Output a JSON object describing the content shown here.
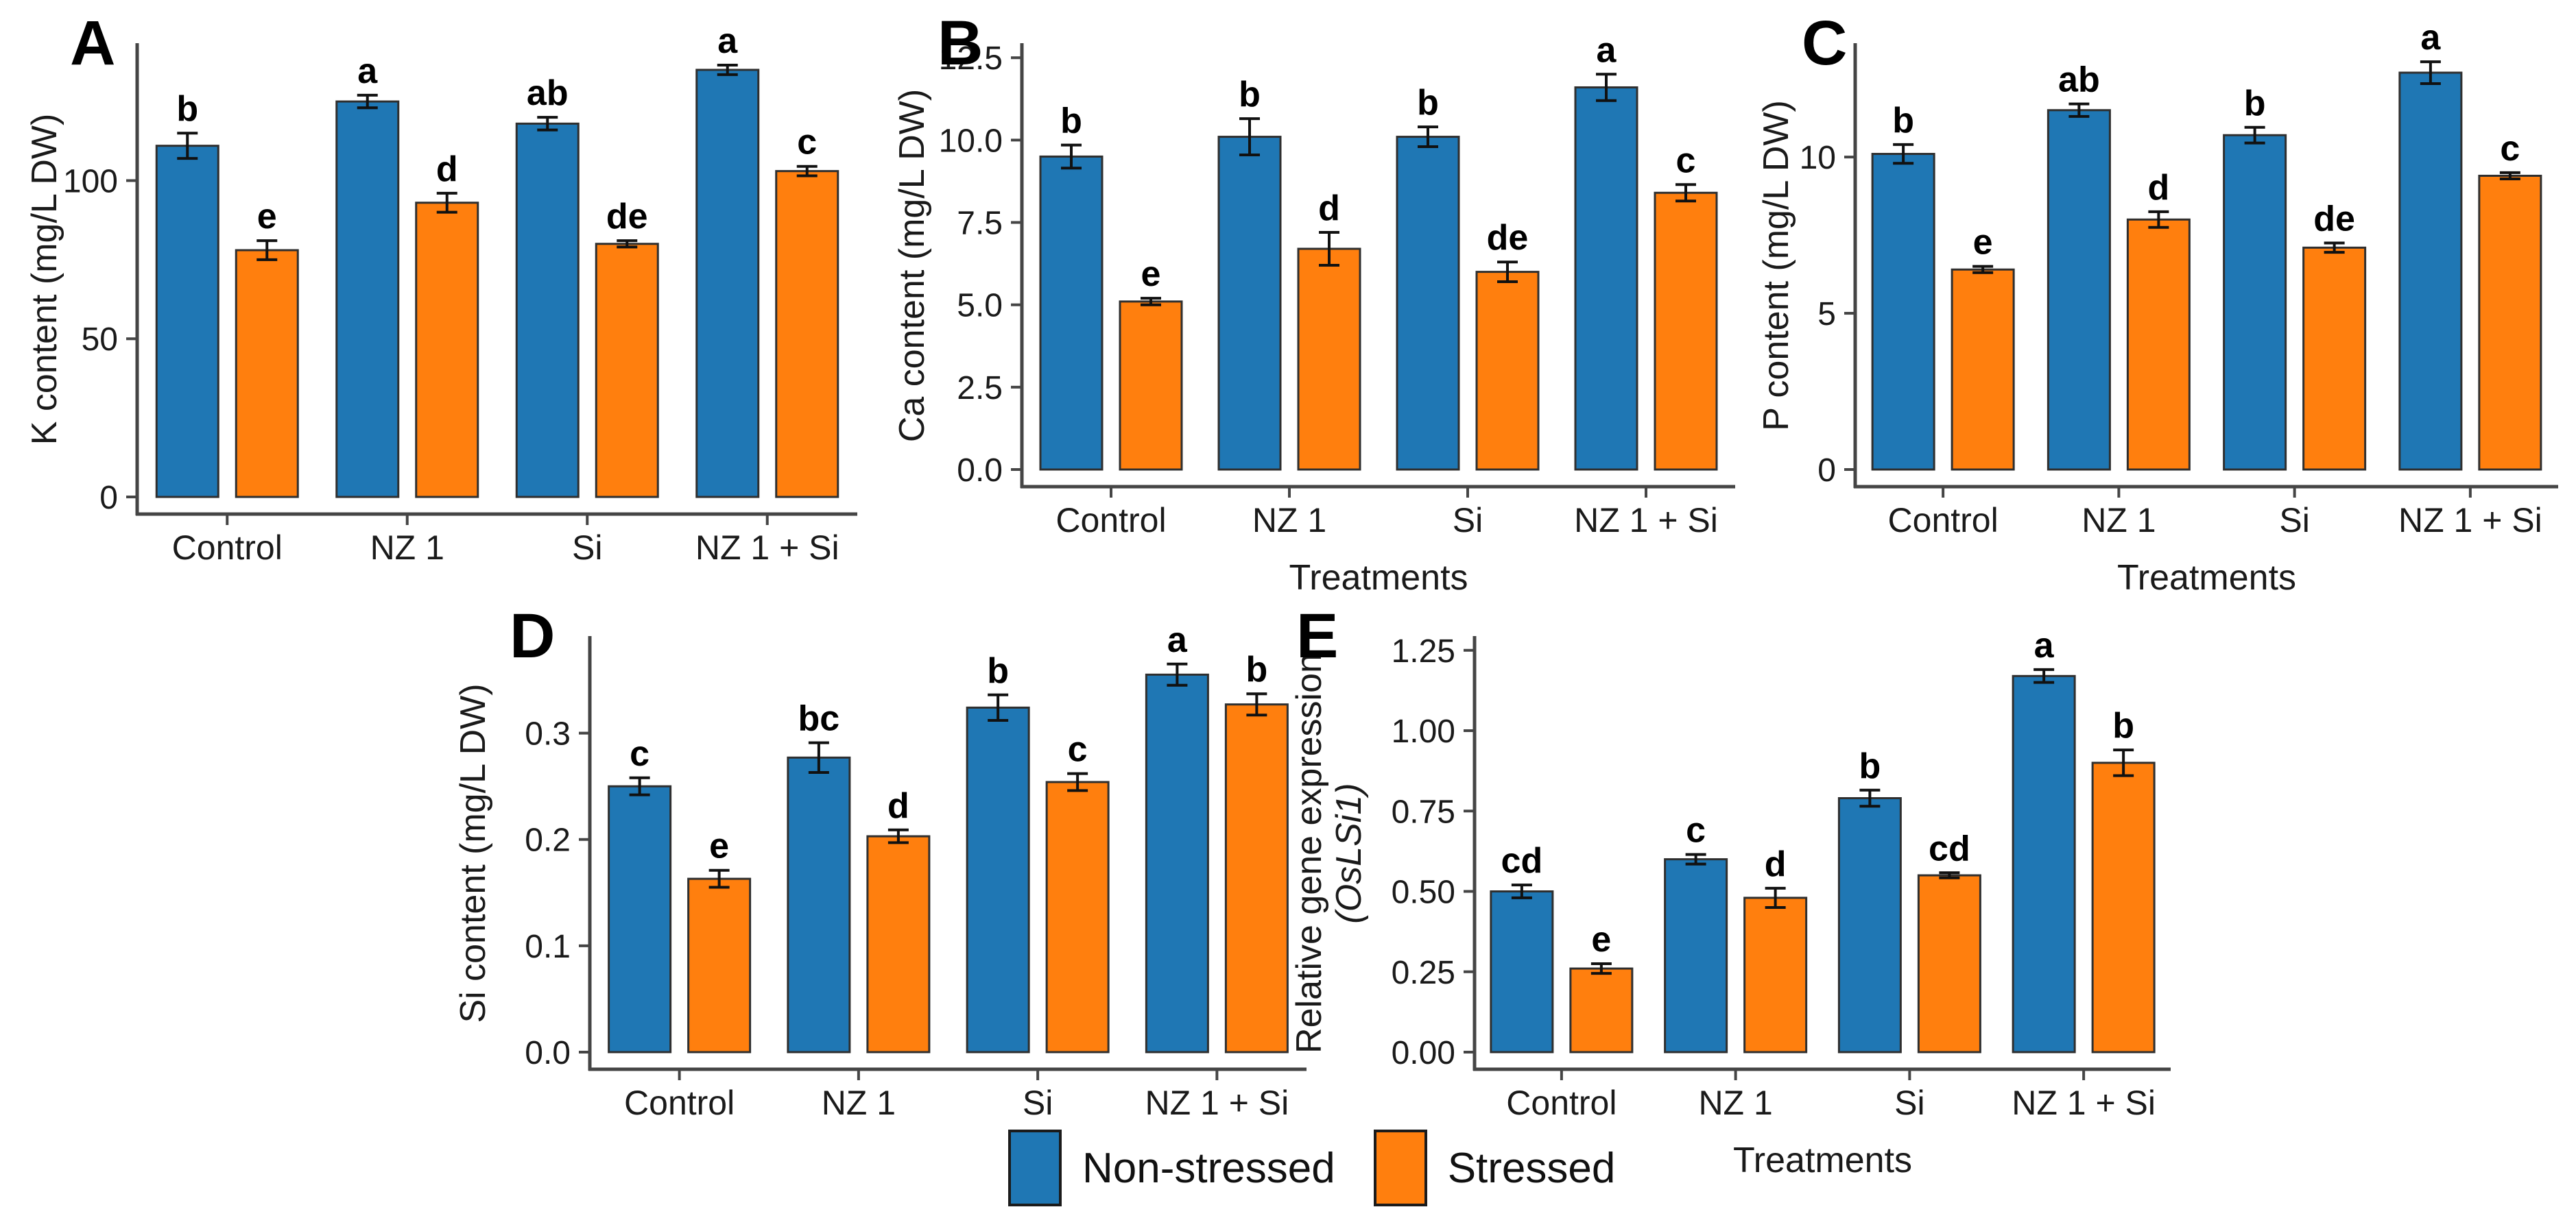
{
  "colors": {
    "non_stressed": "#1f77b4",
    "stressed": "#ff7f0e",
    "bar_border": "#2f2f2f",
    "error_bar": "#111111",
    "axis_line": "#454545",
    "text": "#1a1a1a"
  },
  "legend": {
    "items": [
      {
        "label": "Non-stressed",
        "color": "#1f77b4"
      },
      {
        "label": "Stressed",
        "color": "#ff7f0e"
      }
    ]
  },
  "chart_data": [
    {
      "panel": "A",
      "type": "bar",
      "title": "",
      "ylabel": "K content (mg/L DW)",
      "ylabel_line2": "",
      "xlabel": "",
      "categories": [
        "Control",
        "NZ 1",
        "Si",
        "NZ 1 + Si"
      ],
      "y_tick_values": [
        0,
        50,
        100
      ],
      "y_tick_labels": [
        "0",
        "50",
        "100"
      ],
      "ylim": [
        0,
        143
      ],
      "grid": false,
      "legend_position": "bottom-shared",
      "series": [
        {
          "name": "Non-stressed",
          "color": "#1f77b4",
          "values": [
            111,
            125,
            118,
            135
          ],
          "errors": [
            4,
            2,
            2,
            1.5
          ],
          "sig_letters": [
            "b",
            "a",
            "ab",
            "a"
          ]
        },
        {
          "name": "Stressed",
          "color": "#ff7f0e",
          "values": [
            78,
            93,
            80,
            103
          ],
          "errors": [
            3,
            3,
            1,
            1.5
          ],
          "sig_letters": [
            "e",
            "d",
            "de",
            "c"
          ]
        }
      ]
    },
    {
      "panel": "B",
      "type": "bar",
      "title": "",
      "ylabel": "Ca content (mg/L DW)",
      "ylabel_line2": "",
      "xlabel": "Treatments",
      "categories": [
        "Control",
        "NZ 1",
        "Si",
        "NZ 1 + Si"
      ],
      "y_tick_values": [
        0,
        2.5,
        5,
        7.5,
        10,
        12.5
      ],
      "y_tick_labels": [
        "0.0",
        "2.5",
        "5.0",
        "7.5",
        "10.0",
        "12.5"
      ],
      "ylim": [
        0,
        12.9
      ],
      "grid": false,
      "legend_position": "bottom-shared",
      "series": [
        {
          "name": "Non-stressed",
          "color": "#1f77b4",
          "values": [
            9.5,
            10.1,
            10.1,
            11.6
          ],
          "errors": [
            0.35,
            0.55,
            0.3,
            0.4
          ],
          "sig_letters": [
            "b",
            "b",
            "b",
            "a"
          ]
        },
        {
          "name": "Stressed",
          "color": "#ff7f0e",
          "values": [
            5.1,
            6.7,
            6.0,
            8.4
          ],
          "errors": [
            0.1,
            0.5,
            0.3,
            0.25
          ],
          "sig_letters": [
            "e",
            "d",
            "de",
            "c"
          ]
        }
      ]
    },
    {
      "panel": "C",
      "type": "bar",
      "title": "",
      "ylabel": "P content (mg/L DW)",
      "ylabel_line2": "",
      "xlabel": "Treatments",
      "categories": [
        "Control",
        "NZ 1",
        "Si",
        "NZ 1 + Si"
      ],
      "y_tick_values": [
        0,
        5,
        10
      ],
      "y_tick_labels": [
        "0",
        "5",
        "10"
      ],
      "ylim": [
        0,
        13.6
      ],
      "grid": false,
      "legend_position": "bottom-shared",
      "series": [
        {
          "name": "Non-stressed",
          "color": "#1f77b4",
          "values": [
            10.1,
            11.5,
            10.7,
            12.7
          ],
          "errors": [
            0.3,
            0.2,
            0.25,
            0.35
          ],
          "sig_letters": [
            "b",
            "ab",
            "b",
            "a"
          ]
        },
        {
          "name": "Stressed",
          "color": "#ff7f0e",
          "values": [
            6.4,
            8.0,
            7.1,
            9.4
          ],
          "errors": [
            0.1,
            0.25,
            0.15,
            0.1
          ],
          "sig_letters": [
            "e",
            "d",
            "de",
            "c"
          ]
        }
      ]
    },
    {
      "panel": "D",
      "type": "bar",
      "title": "",
      "ylabel": "Si content (mg/L DW)",
      "ylabel_line2": "",
      "xlabel": "",
      "categories": [
        "Control",
        "NZ 1",
        "Si",
        "NZ 1 + Si"
      ],
      "y_tick_values": [
        0,
        0.1,
        0.2,
        0.3
      ],
      "y_tick_labels": [
        "0.0",
        "0.1",
        "0.2",
        "0.3"
      ],
      "ylim": [
        0,
        0.39
      ],
      "grid": false,
      "legend_position": "bottom-shared",
      "series": [
        {
          "name": "Non-stressed",
          "color": "#1f77b4",
          "values": [
            0.25,
            0.277,
            0.324,
            0.355
          ],
          "errors": [
            0.008,
            0.014,
            0.012,
            0.01
          ],
          "sig_letters": [
            "c",
            "bc",
            "b",
            "a"
          ]
        },
        {
          "name": "Stressed",
          "color": "#ff7f0e",
          "values": [
            0.163,
            0.203,
            0.254,
            0.327
          ],
          "errors": [
            0.008,
            0.006,
            0.008,
            0.01
          ],
          "sig_letters": [
            "e",
            "d",
            "c",
            "b"
          ]
        }
      ]
    },
    {
      "panel": "E",
      "type": "bar",
      "title": "",
      "ylabel": "Relative gene expression",
      "ylabel_line2": "(OsLSi1)",
      "ylabel_line2_italic": true,
      "xlabel": "Treatments",
      "categories": [
        "Control",
        "NZ 1",
        "Si",
        "NZ 1 + Si"
      ],
      "y_tick_values": [
        0,
        0.25,
        0.5,
        0.75,
        1.0,
        1.25
      ],
      "y_tick_labels": [
        "0.00",
        "0.25",
        "0.50",
        "0.75",
        "1.00",
        "1.25"
      ],
      "ylim": [
        0,
        1.29
      ],
      "grid": false,
      "legend_position": "bottom-shared",
      "series": [
        {
          "name": "Non-stressed",
          "color": "#1f77b4",
          "values": [
            0.5,
            0.6,
            0.79,
            1.17
          ],
          "errors": [
            0.02,
            0.015,
            0.025,
            0.02
          ],
          "sig_letters": [
            "cd",
            "c",
            "b",
            "a"
          ]
        },
        {
          "name": "Stressed",
          "color": "#ff7f0e",
          "values": [
            0.26,
            0.48,
            0.55,
            0.9
          ],
          "errors": [
            0.015,
            0.03,
            0.008,
            0.04
          ],
          "sig_letters": [
            "e",
            "d",
            "cd",
            "b"
          ]
        }
      ]
    }
  ]
}
